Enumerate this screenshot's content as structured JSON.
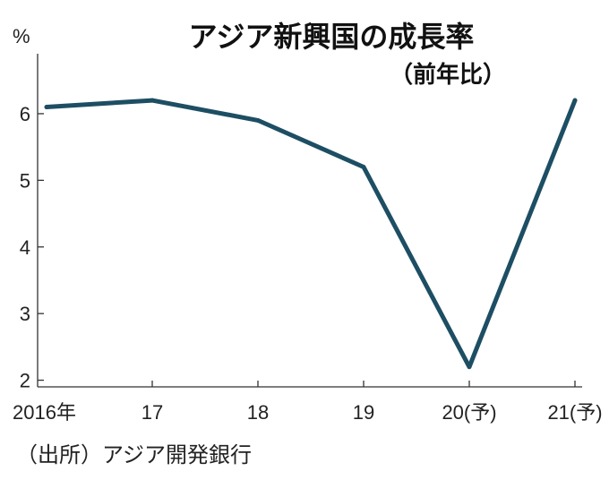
{
  "chart_data": {
    "type": "line",
    "title": "アジア新興国の成長率",
    "subtitle": "（前年比）",
    "ylabel": "%",
    "xlabel": "",
    "categories": [
      "2016年",
      "17",
      "18",
      "19",
      "20(予)",
      "21(予)"
    ],
    "series": [
      {
        "name": "アジア新興国の成長率",
        "values": [
          6.1,
          6.2,
          5.9,
          5.2,
          2.2,
          6.2
        ]
      }
    ],
    "ylim": [
      1.9,
      6.9
    ],
    "yticks": [
      2,
      3,
      4,
      5,
      6
    ],
    "grid": false,
    "source": "（出所）アジア開発銀行",
    "colors": {
      "line": "#1d4e63",
      "axis": "#333333"
    }
  }
}
